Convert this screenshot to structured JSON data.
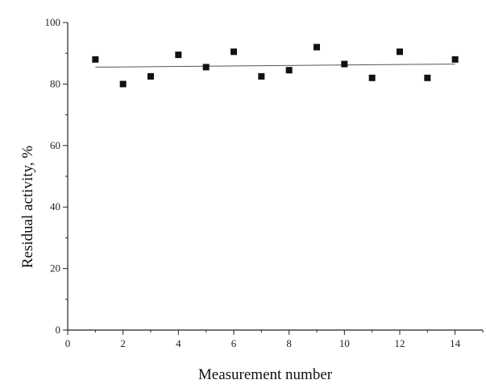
{
  "chart_data": {
    "type": "scatter",
    "xlabel": "Measurement number",
    "ylabel": "Residual activity, %",
    "xlim": [
      0,
      15
    ],
    "ylim": [
      0,
      100
    ],
    "x_ticks": [
      0,
      2,
      4,
      6,
      8,
      10,
      12,
      14
    ],
    "y_ticks": [
      0,
      20,
      40,
      60,
      80,
      100
    ],
    "grid": false,
    "series": [
      {
        "x": [
          1,
          2,
          3,
          4,
          5,
          6,
          7,
          8,
          9,
          10,
          11,
          12,
          13,
          14
        ],
        "y": [
          88,
          80,
          82.5,
          89.5,
          85.5,
          90.5,
          82.5,
          84.5,
          92,
          86.5,
          82,
          90.5,
          82,
          88
        ]
      }
    ],
    "trend_line": {
      "x": [
        1,
        14
      ],
      "y": [
        85.5,
        86.5
      ]
    },
    "colors": {
      "marker": "#111111",
      "line": "#555555",
      "axis": "#222222"
    }
  }
}
